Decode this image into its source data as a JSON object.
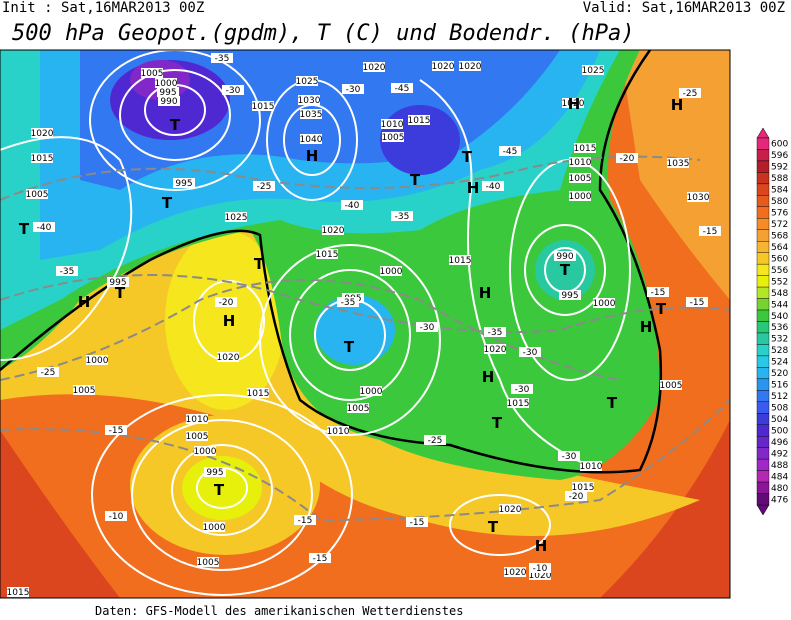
{
  "header": {
    "init": "Init : Sat,16MAR2013 00Z",
    "valid": "Valid: Sat,16MAR2013 00Z",
    "title": "500 hPa Geopot.(gpdm), T (C) und Bodendr. (hPa)"
  },
  "footer": "Daten: GFS-Modell des amerikanischen Wetterdienstes",
  "colorbar": {
    "levels": [
      600,
      596,
      592,
      588,
      584,
      580,
      576,
      572,
      568,
      564,
      560,
      556,
      552,
      548,
      544,
      540,
      536,
      532,
      528,
      524,
      520,
      516,
      512,
      508,
      504,
      500,
      496,
      492,
      488,
      484,
      480,
      476
    ],
    "colors": [
      "#e6287a",
      "#c81e4a",
      "#b41e28",
      "#c8321e",
      "#dc461e",
      "#e65a1e",
      "#f06e1e",
      "#f58c28",
      "#f5a032",
      "#f5b432",
      "#f5c828",
      "#f5e61e",
      "#e6f00a",
      "#b4e628",
      "#78d232",
      "#3cc83c",
      "#28c878",
      "#28c8a0",
      "#28d2c8",
      "#28c8e6",
      "#28b4f0",
      "#2896f0",
      "#3278f0",
      "#3c5af0",
      "#3c3cdc",
      "#5028d2",
      "#6428c8",
      "#8228c8",
      "#a028c8",
      "#b428b4",
      "#8c1496",
      "#640a78"
    ]
  },
  "map": {
    "pressure_labels": [
      "1005",
      "1000",
      "995",
      "990",
      "1020",
      "1015",
      "1005",
      "995",
      "1025",
      "995",
      "1000",
      "1005",
      "1020",
      "1015",
      "1010",
      "1005",
      "1000",
      "995",
      "1000",
      "1005",
      "1010",
      "1005",
      "1000",
      "995",
      "1000",
      "1015",
      "1020",
      "1040",
      "1035",
      "1030",
      "1025",
      "1015",
      "1020",
      "1020",
      "1020",
      "1015",
      "1010",
      "1005",
      "1015",
      "1020",
      "1015",
      "1025",
      "1020",
      "1015",
      "1010",
      "1005",
      "1000",
      "990",
      "995",
      "1000",
      "1005",
      "1010",
      "1015",
      "1020",
      "1020",
      "1020",
      "1030",
      "1035",
      "1015"
    ],
    "temperature_labels": [
      "-35",
      "-30",
      "-30",
      "-45",
      "-25",
      "-45",
      "-40",
      "-20",
      "-25",
      "-40",
      "-35",
      "-40",
      "-35",
      "-20",
      "-35",
      "-30",
      "-35",
      "-30",
      "-30",
      "-15",
      "-15",
      "-10",
      "-15",
      "-15",
      "-25",
      "-30",
      "-20",
      "-10",
      "-15",
      "-15",
      "-15",
      "-25"
    ],
    "centers": [
      "T",
      "H",
      "T",
      "T",
      "H",
      "T",
      "T",
      "T",
      "H",
      "T",
      "H",
      "T",
      "H",
      "T",
      "H",
      "T",
      "H",
      "T",
      "T",
      "T",
      "T",
      "H",
      "H",
      "H"
    ]
  }
}
